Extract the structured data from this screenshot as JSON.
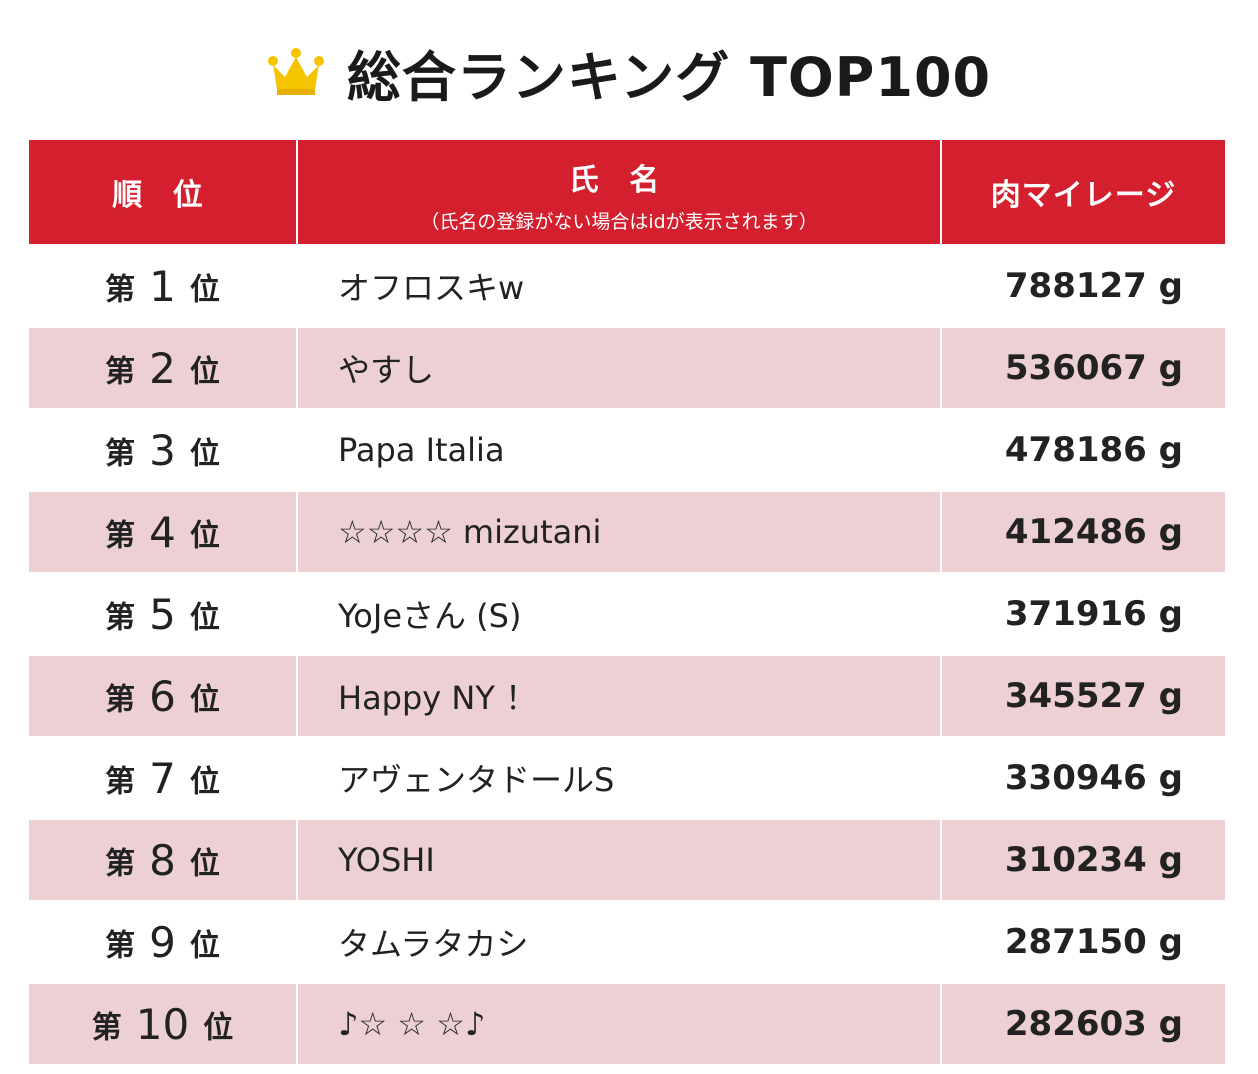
{
  "page": {
    "title": "総合ランキング TOP100",
    "crown_icon": "crown-icon",
    "accent_color": "#d41f2e",
    "row_alt_color": "#ecd0d3"
  },
  "table": {
    "headers": {
      "rank": "順 位",
      "name": "氏 名",
      "name_note": "（氏名の登録がない場合はidが表示されます）",
      "miles": "肉マイレージ"
    },
    "rank_prefix": "第",
    "rank_suffix": "位",
    "rows": [
      {
        "rank": "1",
        "name": "オフロスキw",
        "miles": "788127 g"
      },
      {
        "rank": "2",
        "name": "やすし",
        "miles": "536067 g"
      },
      {
        "rank": "3",
        "name": "Papa Italia",
        "miles": "478186 g"
      },
      {
        "rank": "4",
        "name": "☆☆☆☆ mizutani",
        "miles": "412486 g"
      },
      {
        "rank": "5",
        "name": "YoJeさん (S)",
        "miles": "371916 g"
      },
      {
        "rank": "6",
        "name": "Happy NY ！",
        "miles": "345527 g"
      },
      {
        "rank": "7",
        "name": "アヴェンタドールS",
        "miles": "330946 g"
      },
      {
        "rank": "8",
        "name": "YOSHI",
        "miles": "310234 g"
      },
      {
        "rank": "9",
        "name": "タムラタカシ",
        "miles": "287150 g"
      },
      {
        "rank": "10",
        "name": "♪☆ ☆ ☆♪",
        "miles": "282603 g"
      }
    ]
  }
}
